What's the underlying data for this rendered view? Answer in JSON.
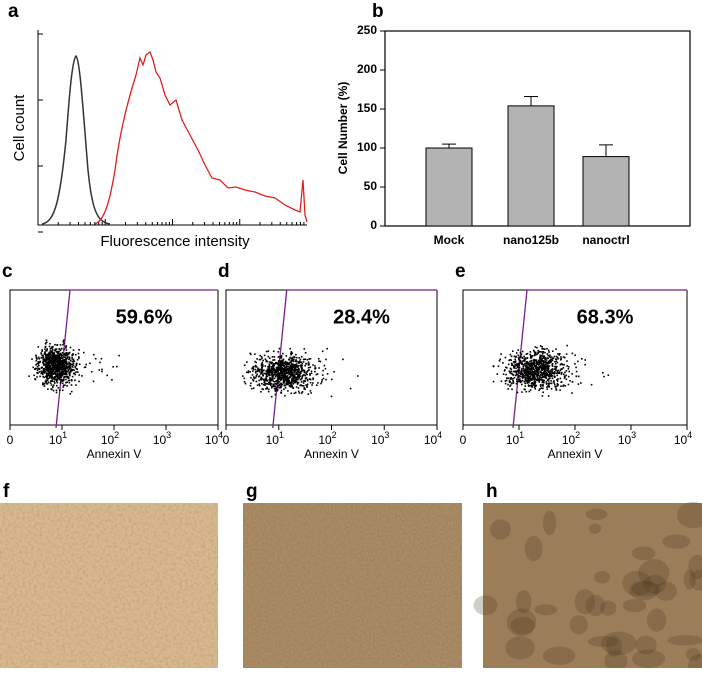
{
  "chart_data": [
    {
      "type": "histogram",
      "panel": "a",
      "xlabel": "Fluorescence intensity",
      "ylabel": "Cell count",
      "series": [
        {
          "color": "#333333"
        },
        {
          "color": "#e0201c"
        }
      ]
    },
    {
      "type": "bar",
      "panel": "b",
      "ylabel": "Cell Number (%)",
      "categories": [
        "Mock",
        "nano125b",
        "nanoctrl"
      ],
      "values": [
        100,
        154,
        89
      ],
      "errors": [
        5,
        12,
        15
      ],
      "color": "#b3b3b3",
      "ylim": [
        0,
        250
      ],
      "yticks": [
        0,
        50,
        100,
        150,
        200,
        250
      ]
    },
    {
      "type": "scatter",
      "panel": "c",
      "annotation": "59.6%",
      "xlabel": "Annexin V",
      "log_x": true,
      "xlim": [
        1,
        10000
      ],
      "xticks": [
        {
          "value": 1,
          "label": "0"
        },
        {
          "value": 10,
          "label": "10",
          "exponent": "1"
        },
        {
          "value": 100,
          "label": "10",
          "exponent": "2"
        },
        {
          "value": 1000,
          "label": "10",
          "exponent": "3"
        },
        {
          "value": 10000,
          "label": "10",
          "exponent": "4"
        }
      ],
      "color": "#7b1f8f"
    },
    {
      "type": "scatter",
      "panel": "d",
      "annotation": "28.4%",
      "xlabel": "Annexin V",
      "log_x": true,
      "xlim": [
        1,
        10000
      ],
      "xticks": [
        {
          "value": 1,
          "label": "0"
        },
        {
          "value": 10,
          "label": "10",
          "exponent": "1"
        },
        {
          "value": 100,
          "label": "10",
          "exponent": "2"
        },
        {
          "value": 1000,
          "label": "10",
          "exponent": "3"
        },
        {
          "value": 10000,
          "label": "10",
          "exponent": "4"
        }
      ],
      "color": "#7b1f8f"
    },
    {
      "type": "scatter",
      "panel": "e",
      "annotation": "68.3%",
      "xlabel": "Annexin V",
      "log_x": true,
      "xlim": [
        1,
        10000
      ],
      "xticks": [
        {
          "value": 1,
          "label": "0"
        },
        {
          "value": 10,
          "label": "10",
          "exponent": "1"
        },
        {
          "value": 100,
          "label": "10",
          "exponent": "2"
        },
        {
          "value": 1000,
          "label": "10",
          "exponent": "3"
        },
        {
          "value": 10000,
          "label": "10",
          "exponent": "4"
        }
      ],
      "color": "#7b1f8f"
    }
  ],
  "images": [
    {
      "panel": "f"
    },
    {
      "panel": "g"
    },
    {
      "panel": "h"
    }
  ]
}
